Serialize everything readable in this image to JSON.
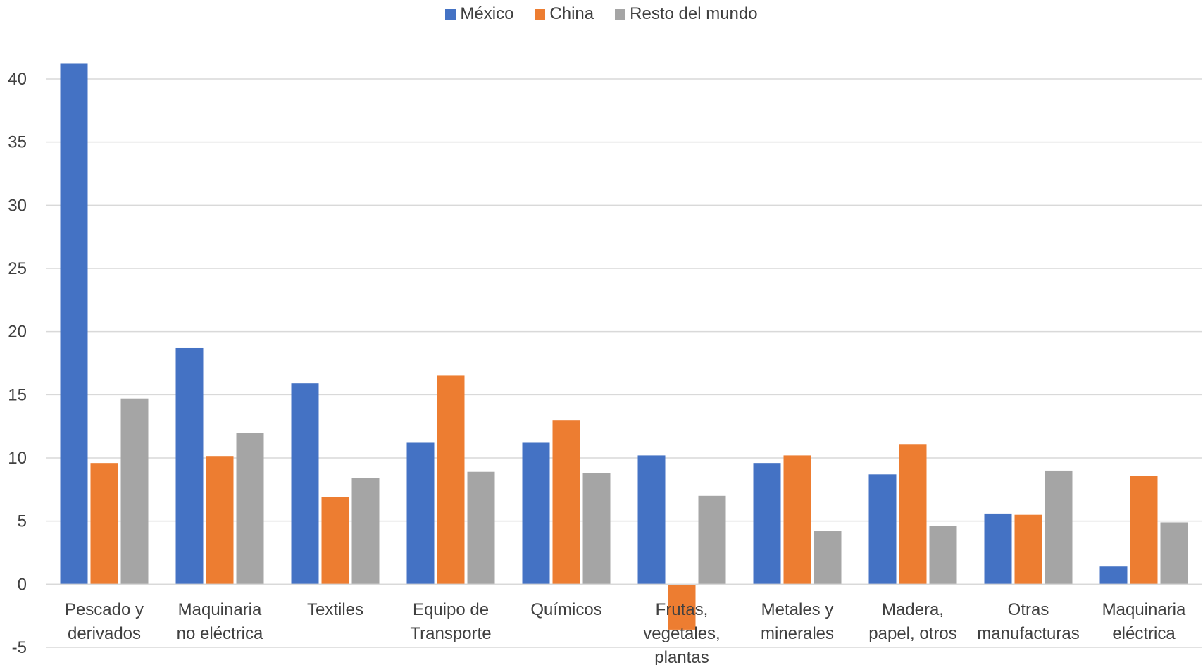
{
  "chart_data": {
    "type": "bar",
    "categories": [
      [
        "Pescado y",
        "derivados"
      ],
      [
        "Maquinaria",
        "no eléctrica"
      ],
      [
        "Textiles"
      ],
      [
        "Equipo de",
        "Transporte"
      ],
      [
        "Químicos"
      ],
      [
        "Frutas,",
        "vegetales,",
        "plantas"
      ],
      [
        "Metales y",
        "minerales"
      ],
      [
        "Madera,",
        "papel, otros"
      ],
      [
        "Otras",
        "manufacturas"
      ],
      [
        "Maquinaria",
        "eléctrica"
      ]
    ],
    "series": [
      {
        "name": "México",
        "color": "#4472C4",
        "values": [
          41.2,
          18.7,
          15.9,
          11.2,
          11.2,
          10.2,
          9.6,
          8.7,
          5.6,
          1.4
        ]
      },
      {
        "name": "China",
        "color": "#ED7D31",
        "values": [
          9.6,
          10.1,
          6.9,
          16.5,
          13.0,
          -3.6,
          10.2,
          11.1,
          5.5,
          8.6
        ]
      },
      {
        "name": "Resto del mundo",
        "color": "#A5A5A5",
        "values": [
          14.7,
          12.0,
          8.4,
          8.9,
          8.8,
          7.0,
          4.2,
          4.6,
          9.0,
          4.9
        ]
      }
    ],
    "yticks": [
      "-5",
      "0",
      "5",
      "10",
      "15",
      "20",
      "25",
      "30",
      "35",
      "40"
    ],
    "ylim": [
      -5,
      40
    ],
    "grid": true,
    "legend_position": "top"
  }
}
